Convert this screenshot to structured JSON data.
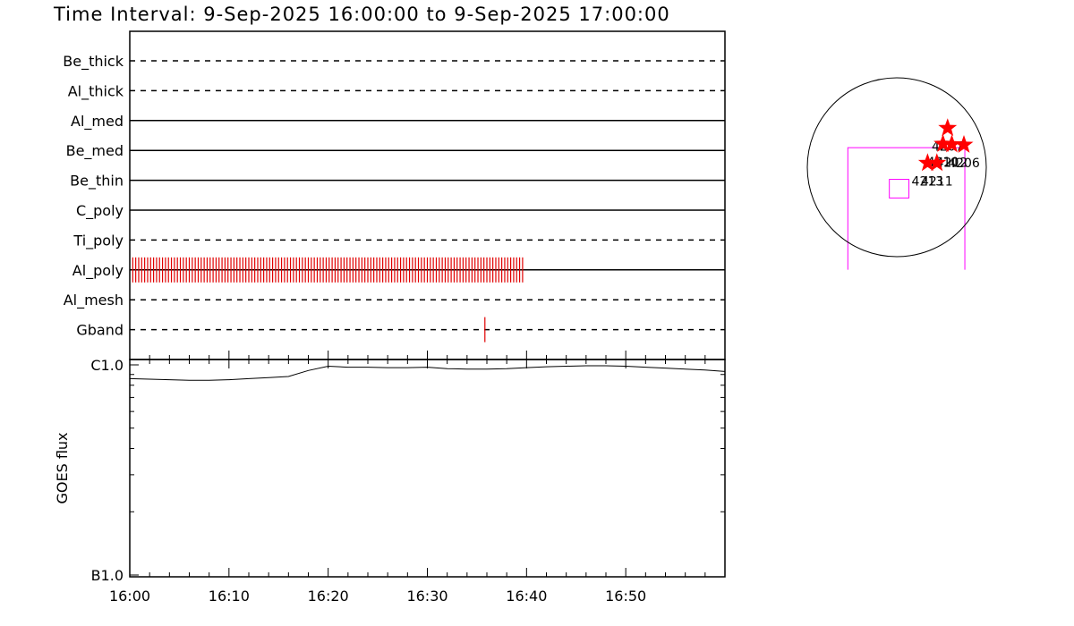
{
  "title": "Time Interval:  9-Sep-2025 16:00:00 to  9-Sep-2025 17:00:00",
  "chart_data": [
    {
      "type": "event-timeline",
      "time_range": [
        "16:00",
        "17:00"
      ],
      "tick_labels": [
        "16:00",
        "16:10",
        "16:20",
        "16:30",
        "16:40",
        "16:50"
      ],
      "rows": [
        {
          "label": "Be_thick",
          "style": "dashed",
          "events": []
        },
        {
          "label": "Al_thick",
          "style": "dashed",
          "events": []
        },
        {
          "label": "Al_med",
          "style": "solid",
          "events": []
        },
        {
          "label": "Be_med",
          "style": "solid",
          "events": []
        },
        {
          "label": "Be_thin",
          "style": "solid",
          "events": []
        },
        {
          "label": "C_poly",
          "style": "solid",
          "events": []
        },
        {
          "label": "Ti_poly",
          "style": "dashed",
          "events": []
        },
        {
          "label": "Al_poly",
          "style": "solid",
          "events": [
            0.3,
            0.6,
            0.9,
            1.2,
            1.5,
            1.8,
            2.1,
            2.4,
            2.7,
            3.0,
            3.3,
            3.6,
            3.9,
            4.2,
            4.5,
            4.8,
            5.1,
            5.4,
            5.7,
            6.0,
            6.3,
            6.6,
            6.9,
            7.2,
            7.5,
            7.8,
            8.1,
            8.4,
            8.7,
            9.0,
            9.3,
            9.6,
            9.9,
            10.2,
            10.5,
            10.8,
            11.1,
            11.4,
            11.7,
            12.0,
            12.3,
            12.6,
            12.9,
            13.2,
            13.5,
            13.8,
            14.1,
            14.4,
            14.7,
            15.0,
            15.3,
            15.6,
            15.9,
            16.2,
            16.5,
            16.8,
            17.1,
            17.4,
            17.7,
            18.0,
            18.3,
            18.6,
            18.9,
            19.2,
            19.5,
            19.8,
            20.1,
            20.4,
            20.7,
            21.0,
            21.3,
            21.6,
            21.9,
            22.2,
            22.5,
            22.8,
            23.1,
            23.4,
            23.7,
            24.0,
            24.3,
            24.6,
            24.9,
            25.2,
            25.5,
            25.8,
            26.1,
            26.4,
            26.7,
            27.0,
            27.3,
            27.6,
            27.9,
            28.2,
            28.5,
            28.8,
            29.1,
            29.4,
            29.7,
            30.0,
            30.3,
            30.6,
            30.9,
            31.2,
            31.5,
            31.8,
            32.1,
            32.4,
            32.7,
            33.0,
            33.3,
            33.6,
            33.9,
            34.2,
            34.5,
            34.8,
            35.1,
            35.4,
            35.7,
            36.0,
            36.3,
            36.6,
            36.9,
            37.2,
            37.5,
            37.8,
            38.1,
            38.4,
            38.7,
            39.0,
            39.3,
            39.6
          ]
        },
        {
          "label": "Al_mesh",
          "style": "dashed",
          "events": []
        },
        {
          "label": "Gband",
          "style": "dashed",
          "events": [
            35.8
          ]
        }
      ]
    },
    {
      "type": "line",
      "ylabel": "GOES flux",
      "yscale": "log",
      "ylim": [
        1e-07,
        1e-06
      ],
      "ytick_labels": [
        "B1.0",
        "C1.0"
      ],
      "x_minutes": [
        0,
        2,
        4,
        6,
        8,
        10,
        12,
        14,
        16,
        18,
        20,
        22,
        24,
        26,
        28,
        30,
        32,
        34,
        36,
        38,
        40,
        42,
        44,
        46,
        48,
        50,
        52,
        54,
        56,
        58,
        60
      ],
      "flux": [
        8.6e-07,
        8.55e-07,
        8.5e-07,
        8.45e-07,
        8.45e-07,
        8.5e-07,
        8.6e-07,
        8.7e-07,
        8.8e-07,
        9.4e-07,
        9.85e-07,
        9.75e-07,
        9.75e-07,
        9.7e-07,
        9.7e-07,
        9.75e-07,
        9.6e-07,
        9.55e-07,
        9.55e-07,
        9.6e-07,
        9.7e-07,
        9.8e-07,
        9.85e-07,
        9.9e-07,
        9.9e-07,
        9.85e-07,
        9.75e-07,
        9.65e-07,
        9.55e-07,
        9.45e-07,
        9.3e-07
      ]
    },
    {
      "type": "scatter",
      "description_units": "arcsec",
      "points": [
        {
          "label": "4207",
          "x": 545,
          "y": 420
        },
        {
          "label": "4210",
          "x": 495,
          "y": 250
        },
        {
          "label": "4212",
          "x": 590,
          "y": 245
        },
        {
          "label": "4206",
          "x": 720,
          "y": 240
        },
        {
          "label": "4213",
          "x": 330,
          "y": 45
        },
        {
          "label": "4211",
          "x": 430,
          "y": 45
        }
      ],
      "fov_box": {
        "x": [
          -80,
          130
        ],
        "y": [
          -330,
          -130
        ]
      },
      "outer_box": {
        "x": [
          -525,
          730
        ],
        "y": [
          -1100,
          210
        ]
      },
      "colors": {
        "stars": "#ff0000",
        "boxes": "#ff00ff",
        "disk": "#000000"
      }
    }
  ]
}
